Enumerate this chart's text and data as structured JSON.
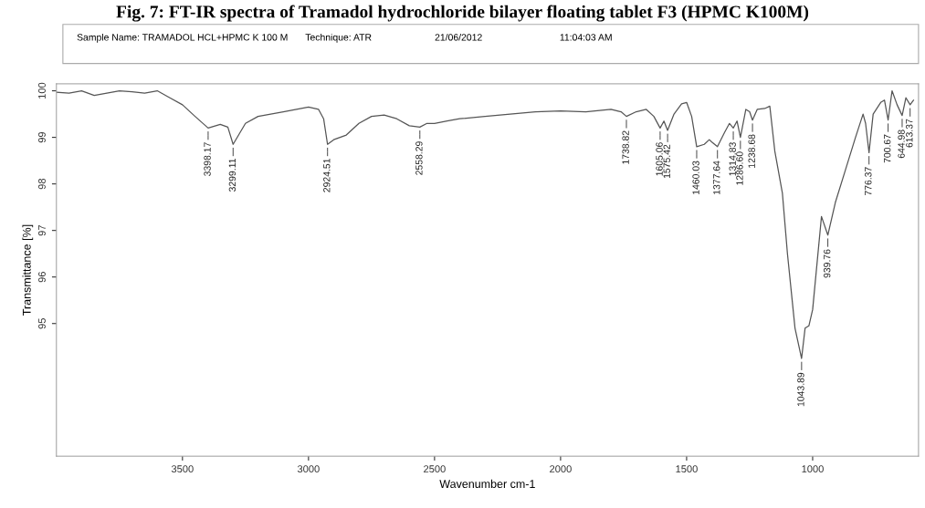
{
  "chart_data": {
    "type": "line",
    "title": "Fig. 7: FT-IR spectra of Tramadol hydrochloride bilayer floating tablet F3 (HPMC K100M)",
    "xlabel": "Wavenumber cm-1",
    "ylabel": "Transmittance [%]",
    "xlim": [
      4000,
      580
    ],
    "ylim": [
      92.15,
      100.15
    ],
    "xticks": [
      3500,
      3000,
      2500,
      2000,
      1500,
      1000
    ],
    "yticks": [
      95,
      96,
      97,
      98,
      99,
      100
    ],
    "x": [
      4000,
      3950,
      3900,
      3850,
      3800,
      3750,
      3700,
      3650,
      3600,
      3550,
      3500,
      3450,
      3398.17,
      3350,
      3320,
      3299.11,
      3250,
      3200,
      3100,
      3000,
      2960,
      2940,
      2924.51,
      2900,
      2850,
      2800,
      2750,
      2700,
      2650,
      2600,
      2558.29,
      2530,
      2500,
      2450,
      2400,
      2300,
      2200,
      2100,
      2000,
      1900,
      1800,
      1760,
      1738.82,
      1700,
      1660,
      1630,
      1605.06,
      1590,
      1575.42,
      1550,
      1520,
      1500,
      1480,
      1460.03,
      1430,
      1410,
      1400,
      1377.64,
      1350,
      1330,
      1314.83,
      1300,
      1286.6,
      1265,
      1250,
      1238.68,
      1220,
      1190,
      1170,
      1150,
      1120,
      1100,
      1070,
      1043.89,
      1030,
      1015,
      1000,
      965,
      939.76,
      910,
      870,
      830,
      800,
      790,
      776.37,
      760,
      730,
      715,
      700.67,
      685,
      665,
      644.98,
      630,
      613.37,
      600
    ],
    "series": [
      {
        "color": "#555555",
        "values": [
          99.97,
          99.95,
          100.0,
          99.9,
          99.95,
          100.0,
          99.98,
          99.95,
          100.0,
          99.85,
          99.7,
          99.45,
          99.2,
          99.28,
          99.22,
          98.85,
          99.3,
          99.45,
          99.55,
          99.65,
          99.6,
          99.4,
          98.85,
          98.95,
          99.05,
          99.3,
          99.45,
          99.48,
          99.4,
          99.25,
          99.22,
          99.3,
          99.3,
          99.35,
          99.4,
          99.45,
          99.5,
          99.55,
          99.57,
          99.55,
          99.6,
          99.55,
          99.45,
          99.55,
          99.6,
          99.45,
          99.2,
          99.35,
          99.15,
          99.5,
          99.72,
          99.75,
          99.45,
          98.8,
          98.85,
          98.95,
          98.9,
          98.8,
          99.1,
          99.3,
          99.2,
          99.35,
          99.0,
          99.6,
          99.55,
          99.37,
          99.6,
          99.62,
          99.67,
          98.7,
          97.8,
          96.5,
          94.9,
          94.25,
          94.9,
          94.95,
          95.3,
          97.3,
          96.9,
          97.6,
          98.3,
          99.0,
          99.5,
          99.3,
          98.67,
          99.5,
          99.75,
          99.8,
          99.37,
          100.0,
          99.7,
          99.47,
          99.85,
          99.7,
          99.8
        ]
      }
    ],
    "annotations": [
      "Sample Name: TRAMADOL HCL+HPMC K 100 M",
      "Technique: ATR",
      "21/06/2012",
      "11:04:03 AM",
      {
        "text": "3398.17",
        "x": 3398.17,
        "y": 99.2
      },
      {
        "text": "3299.11",
        "x": 3299.11,
        "y": 98.85
      },
      {
        "text": "2924.51",
        "x": 2924.51,
        "y": 98.85
      },
      {
        "text": "2558.29",
        "x": 2558.29,
        "y": 99.22
      },
      {
        "text": "1738.82",
        "x": 1738.82,
        "y": 99.45
      },
      {
        "text": "1605.06",
        "x": 1605.06,
        "y": 99.2
      },
      {
        "text": "1575.42",
        "x": 1575.42,
        "y": 99.15
      },
      {
        "text": "1460.03",
        "x": 1460.03,
        "y": 98.8
      },
      {
        "text": "1377.64",
        "x": 1377.64,
        "y": 98.8
      },
      {
        "text": "1314.83",
        "x": 1314.83,
        "y": 99.2
      },
      {
        "text": "1286.60",
        "x": 1286.6,
        "y": 99.0
      },
      {
        "text": "1238.68",
        "x": 1238.68,
        "y": 99.37
      },
      {
        "text": "1043.89",
        "x": 1043.89,
        "y": 94.25
      },
      {
        "text": "939.76",
        "x": 939.76,
        "y": 96.9
      },
      {
        "text": "776.37",
        "x": 776.37,
        "y": 98.67
      },
      {
        "text": "700.67",
        "x": 700.67,
        "y": 99.37
      },
      {
        "text": "644.98",
        "x": 644.98,
        "y": 99.47
      },
      {
        "text": "613.37",
        "x": 613.37,
        "y": 99.7
      }
    ]
  }
}
